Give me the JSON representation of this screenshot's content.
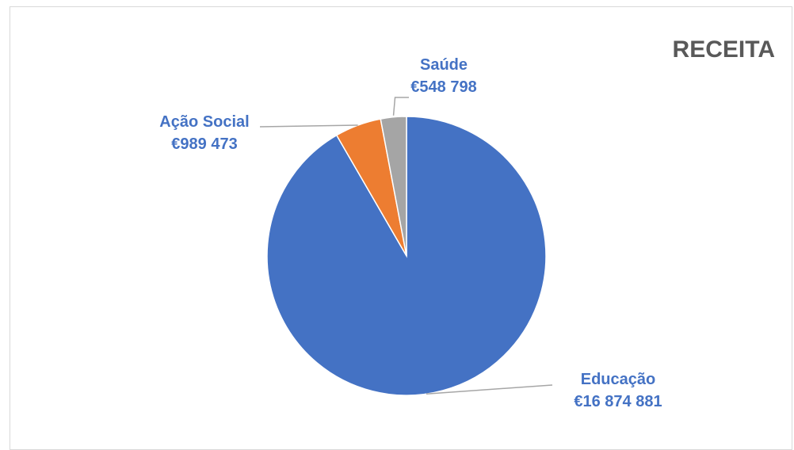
{
  "chart_data": {
    "type": "pie",
    "title": "RECEITA",
    "slices": [
      {
        "label": "Educação",
        "value_label": "€16 874 881",
        "value": 16874881,
        "color": "#4472C4"
      },
      {
        "label": "Ação Social",
        "value_label": "€989 473",
        "value": 989473,
        "color": "#ED7D31"
      },
      {
        "label": "Saúde",
        "value_label": "€548 798",
        "value": 548798,
        "color": "#A5A5A5"
      }
    ],
    "data_labels_shown": true,
    "legend": "none",
    "label_color": "#4472C4",
    "leader_line_color": "#a6a6a6"
  }
}
